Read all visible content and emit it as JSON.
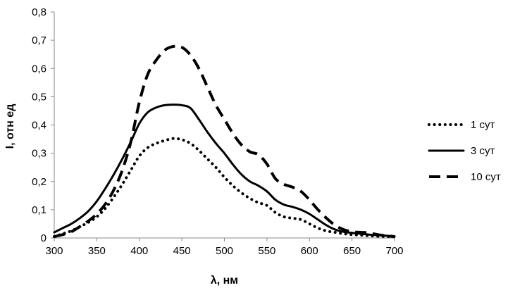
{
  "chart_data": {
    "type": "line",
    "title": "",
    "xlabel": "λ, нм",
    "ylabel": "I, отн ед",
    "xlim": [
      300,
      700
    ],
    "ylim": [
      0,
      0.8
    ],
    "x_ticks": [
      300,
      350,
      400,
      450,
      500,
      550,
      600,
      650,
      700
    ],
    "x_tick_labels": [
      "300",
      "350",
      "400",
      "450",
      "500",
      "550",
      "600",
      "650",
      "700"
    ],
    "y_ticks": [
      0,
      0.1,
      0.2,
      0.3,
      0.4,
      0.5,
      0.6,
      0.7,
      0.8
    ],
    "y_tick_labels": [
      "0",
      "0,1",
      "0,2",
      "0,3",
      "0,4",
      "0,5",
      "0,6",
      "0,7",
      "0,8"
    ],
    "grid": false,
    "legend_position": "right",
    "series": [
      {
        "name": "1 сут",
        "style": "dotted",
        "color": "#000000",
        "x": [
          300,
          310,
          320,
          330,
          340,
          350,
          360,
          370,
          380,
          390,
          400,
          410,
          420,
          430,
          440,
          450,
          460,
          470,
          480,
          490,
          500,
          510,
          520,
          530,
          540,
          550,
          560,
          570,
          580,
          590,
          600,
          610,
          620,
          630,
          640,
          650,
          660,
          670,
          680,
          690,
          700
        ],
        "y": [
          0.005,
          0.015,
          0.025,
          0.04,
          0.055,
          0.075,
          0.105,
          0.145,
          0.19,
          0.24,
          0.29,
          0.32,
          0.335,
          0.345,
          0.352,
          0.348,
          0.335,
          0.31,
          0.28,
          0.25,
          0.215,
          0.185,
          0.16,
          0.14,
          0.125,
          0.115,
          0.09,
          0.075,
          0.07,
          0.065,
          0.05,
          0.035,
          0.025,
          0.02,
          0.015,
          0.012,
          0.01,
          0.008,
          0.006,
          0.005,
          0.004
        ]
      },
      {
        "name": "3 сут",
        "style": "solid",
        "color": "#000000",
        "x": [
          300,
          310,
          320,
          330,
          340,
          350,
          360,
          370,
          380,
          390,
          400,
          410,
          420,
          430,
          440,
          450,
          460,
          470,
          480,
          490,
          500,
          510,
          520,
          530,
          540,
          550,
          560,
          570,
          580,
          590,
          600,
          610,
          620,
          630,
          640,
          650,
          660,
          670,
          680,
          690,
          700
        ],
        "y": [
          0.02,
          0.035,
          0.05,
          0.07,
          0.095,
          0.13,
          0.175,
          0.225,
          0.28,
          0.34,
          0.405,
          0.445,
          0.462,
          0.47,
          0.472,
          0.47,
          0.46,
          0.42,
          0.375,
          0.335,
          0.3,
          0.26,
          0.225,
          0.2,
          0.185,
          0.165,
          0.135,
          0.118,
          0.11,
          0.1,
          0.085,
          0.065,
          0.045,
          0.03,
          0.022,
          0.018,
          0.015,
          0.012,
          0.01,
          0.008,
          0.006
        ]
      },
      {
        "name": "10 сут",
        "style": "dashed",
        "color": "#000000",
        "x": [
          300,
          310,
          320,
          330,
          340,
          350,
          360,
          370,
          380,
          390,
          400,
          410,
          420,
          430,
          440,
          450,
          460,
          470,
          480,
          490,
          500,
          510,
          520,
          530,
          540,
          550,
          560,
          570,
          580,
          590,
          600,
          610,
          620,
          630,
          640,
          650,
          660,
          670,
          680,
          690,
          700
        ],
        "y": [
          0.005,
          0.012,
          0.022,
          0.04,
          0.06,
          0.085,
          0.12,
          0.17,
          0.24,
          0.34,
          0.48,
          0.58,
          0.63,
          0.665,
          0.678,
          0.675,
          0.648,
          0.6,
          0.535,
          0.47,
          0.42,
          0.37,
          0.33,
          0.305,
          0.295,
          0.262,
          0.21,
          0.19,
          0.18,
          0.165,
          0.135,
          0.1,
          0.07,
          0.045,
          0.03,
          0.022,
          0.02,
          0.018,
          0.012,
          0.008,
          0.005
        ]
      }
    ]
  }
}
